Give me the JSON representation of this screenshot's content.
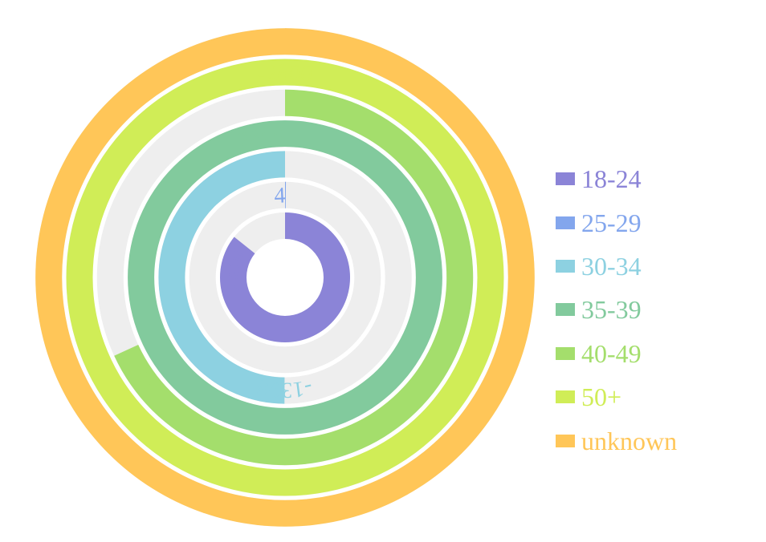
{
  "chart_data": {
    "type": "radial-bar",
    "title": "",
    "max_value": 2800,
    "series": [
      {
        "name": "18-24",
        "value": 2400,
        "label": "2400",
        "color": "#8b84d7"
      },
      {
        "name": "25-29",
        "value": 4,
        "label": "4",
        "color": "#83a6ed"
      },
      {
        "name": "30-34",
        "value": -1398,
        "label": "-1398",
        "color": "#8dd1e1"
      },
      {
        "name": "35-39",
        "value": 2800,
        "label": "2800",
        "color": "#82ca9d"
      },
      {
        "name": "40-49",
        "value": 1908,
        "label": "1908",
        "color": "#a4de6c"
      },
      {
        "name": "50+",
        "value": -2800,
        "label": "-2800",
        "color": "#d0ed57"
      },
      {
        "name": "unknown",
        "value": 4800,
        "label": "",
        "color": "#ffc658"
      }
    ],
    "legend_position": "right",
    "background_track_color": "#eeeeee"
  }
}
